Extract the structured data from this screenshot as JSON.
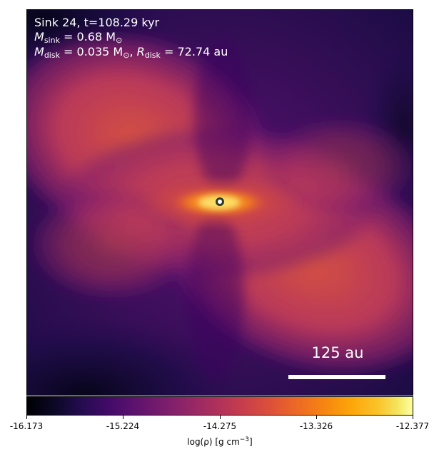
{
  "panel": {
    "sink_title": "Sink 24, t=108.29 kyr",
    "m_sink_symbol": "M",
    "m_sink_sub": "sink",
    "m_sink_value": "= 0.68 M",
    "m_sink_sun": "⊙",
    "m_disk_symbol": "M",
    "m_disk_sub": "disk",
    "m_disk_value": "= 0.035 M",
    "m_disk_sun": "⊙",
    "sep": ",",
    "r_disk_symbol": "R",
    "r_disk_sub": "disk",
    "r_disk_value": "= 72.74 au",
    "scalebar_label": "125 au"
  },
  "colorbar": {
    "colormap": "inferno",
    "range": [
      -16.173,
      -12.377
    ],
    "ticks": [
      "-16.173",
      "-15.224",
      "-14.275",
      "-13.326",
      "-12.377"
    ],
    "label_prefix": "log(ρ) [g cm",
    "label_exp": "−3",
    "label_suffix": "]"
  },
  "colors": {
    "background_purple": "#2a0b55",
    "disk_core": "#fde36a",
    "sink_marker_edge": "#2c3a2c",
    "text": "#ffffff"
  },
  "icons": {
    "sink": "circle-marker"
  }
}
